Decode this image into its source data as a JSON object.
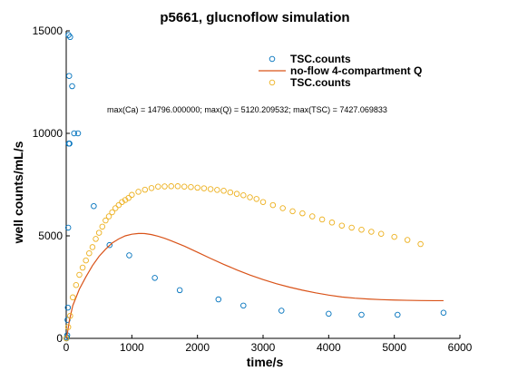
{
  "chart_data": {
    "type": "scatter",
    "title": "p5661, glucnoflow simulation",
    "xlabel": "time/s",
    "ylabel": "well counts/mL/s",
    "xlim": [
      0,
      6000
    ],
    "ylim": [
      0,
      15000
    ],
    "xticks": [
      0,
      1000,
      2000,
      3000,
      4000,
      5000,
      6000
    ],
    "yticks": [
      0,
      5000,
      10000,
      15000
    ],
    "grid": false,
    "legend_position": "top-right",
    "annotation": "max(Ca) = 14796.000000; max(Q) = 5120.209532; max(TSC) = 7427.069833",
    "colors": {
      "blue": "#0072bd",
      "orange": "#d95319",
      "yellow": "#edb120"
    },
    "series": [
      {
        "name": "TSC.counts",
        "style": "circle-markers",
        "color": "#0072bd",
        "x": [
          5,
          10,
          15,
          20,
          25,
          30,
          35,
          40,
          45,
          50,
          60,
          90,
          120,
          180,
          420,
          660,
          960,
          1350,
          1730,
          2320,
          2700,
          3280,
          4000,
          4500,
          5050,
          5750
        ],
        "y": [
          0,
          50,
          150,
          900,
          1500,
          5400,
          14796,
          9500,
          12800,
          9500,
          14700,
          12300,
          10000,
          10000,
          6450,
          4550,
          4050,
          2950,
          2350,
          1900,
          1600,
          1350,
          1200,
          1150,
          1150,
          1250
        ]
      },
      {
        "name": "no-flow 4-compartment Q",
        "style": "line",
        "color": "#d95319",
        "x": [
          0,
          20,
          50,
          100,
          200,
          300,
          400,
          500,
          600,
          700,
          800,
          900,
          1000,
          1100,
          1150,
          1200,
          1300,
          1400,
          1500,
          1600,
          1800,
          2000,
          2200,
          2400,
          2600,
          2800,
          3000,
          3200,
          3400,
          3600,
          3800,
          4000,
          4200,
          4400,
          4600,
          4800,
          5000,
          5200,
          5400,
          5600,
          5750
        ],
        "y": [
          0,
          300,
          900,
          1600,
          2400,
          3000,
          3550,
          4000,
          4350,
          4650,
          4850,
          5000,
          5080,
          5115,
          5120,
          5110,
          5060,
          4980,
          4880,
          4760,
          4500,
          4200,
          3900,
          3610,
          3340,
          3090,
          2870,
          2670,
          2500,
          2350,
          2220,
          2110,
          2020,
          1960,
          1920,
          1890,
          1870,
          1855,
          1845,
          1840,
          1840
        ]
      },
      {
        "name": "TSC.counts",
        "style": "circle-markers",
        "color": "#edb120",
        "x": [
          0,
          30,
          60,
          100,
          150,
          200,
          250,
          300,
          350,
          400,
          450,
          500,
          550,
          600,
          650,
          700,
          750,
          800,
          850,
          900,
          950,
          1000,
          1100,
          1200,
          1300,
          1400,
          1500,
          1600,
          1700,
          1800,
          1900,
          2000,
          2100,
          2200,
          2300,
          2400,
          2500,
          2600,
          2700,
          2800,
          2900,
          3000,
          3150,
          3300,
          3450,
          3600,
          3750,
          3900,
          4050,
          4200,
          4350,
          4500,
          4650,
          4800,
          5000,
          5200,
          5400
        ],
        "y": [
          0,
          550,
          1100,
          2000,
          2600,
          3100,
          3450,
          3800,
          4150,
          4450,
          4850,
          5150,
          5450,
          5750,
          5950,
          6150,
          6350,
          6500,
          6650,
          6750,
          6850,
          7000,
          7150,
          7250,
          7330,
          7400,
          7410,
          7420,
          7420,
          7400,
          7380,
          7350,
          7320,
          7280,
          7240,
          7200,
          7120,
          7050,
          6980,
          6880,
          6800,
          6650,
          6500,
          6350,
          6200,
          6100,
          5950,
          5800,
          5650,
          5500,
          5400,
          5300,
          5200,
          5100,
          4950,
          4800,
          4600
        ]
      }
    ]
  }
}
